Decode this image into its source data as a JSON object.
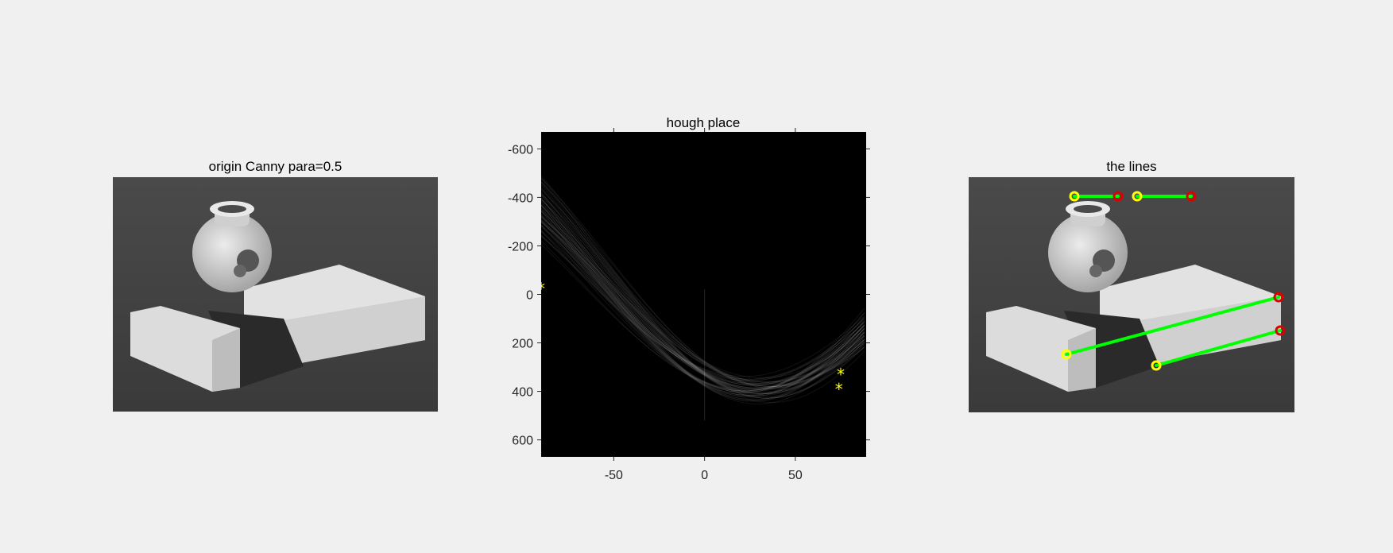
{
  "figure": {
    "background": "#f0f0f0"
  },
  "left_panel": {
    "title": "origin Canny para=0.5",
    "content": "grayscale photo of vase and TDK tape box"
  },
  "right_panel": {
    "title": "the lines",
    "line_color": "#00ff00",
    "start_marker_color": "#ffff00",
    "end_marker_color": "#ff0000"
  },
  "chart_data": {
    "type": "heatmap",
    "title": "hough place",
    "xlabel": "",
    "ylabel": "",
    "xlim": [
      -90,
      89
    ],
    "ylim": [
      -670,
      670
    ],
    "y_reversed": true,
    "x_ticks": [
      -50,
      0,
      50
    ],
    "y_ticks": [
      -600,
      -400,
      -200,
      0,
      200,
      400,
      600
    ],
    "colormap": "gray",
    "peaks": {
      "marker": "*",
      "color": "#ffff00",
      "points": [
        {
          "theta": -90,
          "rho": -30
        },
        {
          "theta": 75,
          "rho": 325
        },
        {
          "theta": 74,
          "rho": 385
        }
      ]
    }
  }
}
